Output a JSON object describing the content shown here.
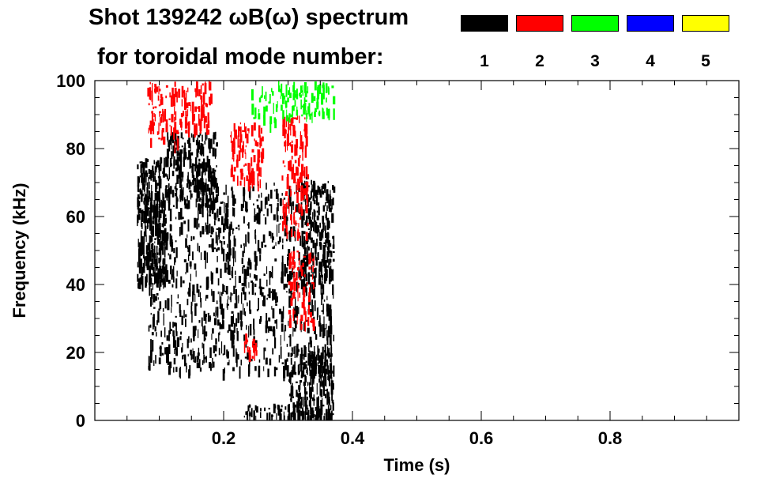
{
  "chart_data": {
    "type": "heatmap",
    "title_line1": "Shot 139242 ωB(ω) spectrum",
    "title_line2": "for toroidal mode number:",
    "legend": [
      {
        "label": "1",
        "color": "#000000"
      },
      {
        "label": "2",
        "color": "#ff0000"
      },
      {
        "label": "3",
        "color": "#00ff00"
      },
      {
        "label": "4",
        "color": "#0000ff"
      },
      {
        "label": "5",
        "color": "#ffff00"
      }
    ],
    "xlabel": "Time (s)",
    "ylabel": "Frequency (kHz)",
    "xlim": [
      0.0,
      1.0
    ],
    "ylim": [
      0,
      100
    ],
    "x_ticks": [
      0.2,
      0.4,
      0.6,
      0.8
    ],
    "x_tick_labels": [
      "0.2",
      "0.4",
      "0.6",
      "0.8"
    ],
    "y_ticks": [
      0,
      20,
      40,
      60,
      80,
      100
    ],
    "y_tick_labels": [
      "0",
      "20",
      "40",
      "60",
      "80",
      "100"
    ],
    "regions": [
      {
        "mode": 1,
        "t": [
          0.065,
          0.11
        ],
        "f": [
          40,
          78
        ],
        "density": 0.75
      },
      {
        "mode": 1,
        "t": [
          0.11,
          0.19
        ],
        "f": [
          65,
          85
        ],
        "density": 0.6
      },
      {
        "mode": 1,
        "t": [
          0.08,
          0.37
        ],
        "f": [
          15,
          70
        ],
        "density": 0.25
      },
      {
        "mode": 1,
        "t": [
          0.3,
          0.37
        ],
        "f": [
          0,
          22
        ],
        "density": 0.7
      },
      {
        "mode": 1,
        "t": [
          0.32,
          0.37
        ],
        "f": [
          40,
          72
        ],
        "density": 0.45
      },
      {
        "mode": 1,
        "t": [
          0.23,
          0.3
        ],
        "f": [
          1,
          5
        ],
        "density": 0.5
      },
      {
        "mode": 2,
        "t": [
          0.08,
          0.13
        ],
        "f": [
          82,
          100
        ],
        "density": 0.35
      },
      {
        "mode": 2,
        "t": [
          0.13,
          0.18
        ],
        "f": [
          85,
          100
        ],
        "density": 0.4
      },
      {
        "mode": 2,
        "t": [
          0.21,
          0.26
        ],
        "f": [
          70,
          88
        ],
        "density": 0.45
      },
      {
        "mode": 2,
        "t": [
          0.29,
          0.33
        ],
        "f": [
          55,
          90
        ],
        "density": 0.4
      },
      {
        "mode": 2,
        "t": [
          0.3,
          0.34
        ],
        "f": [
          28,
          50
        ],
        "density": 0.35
      },
      {
        "mode": 2,
        "t": [
          0.23,
          0.25
        ],
        "f": [
          18,
          26
        ],
        "density": 0.4
      },
      {
        "mode": 3,
        "t": [
          0.24,
          0.3
        ],
        "f": [
          88,
          100
        ],
        "density": 0.25
      },
      {
        "mode": 3,
        "t": [
          0.3,
          0.37
        ],
        "f": [
          90,
          100
        ],
        "density": 0.45
      }
    ]
  }
}
